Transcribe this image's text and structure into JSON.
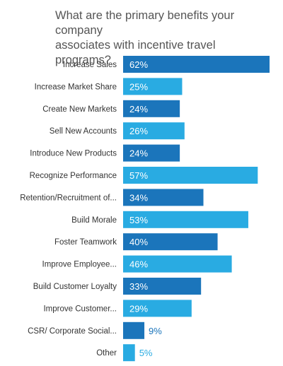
{
  "chart_data": {
    "type": "bar",
    "orientation": "horizontal",
    "title": "What are the primary benefits  your company\nassociates with incentive travel programs?",
    "categories": [
      "Increase Sales",
      "Increase Market Share",
      "Create New Markets",
      "Sell New Accounts",
      "Introduce New Products",
      "Recognize Performance",
      "Retention/Recruitment of...",
      "Build Morale",
      "Foster Teamwork",
      "Improve Employee...",
      "Build Customer Loyalty",
      "Improve Customer...",
      "CSR/ Corporate Social...",
      "Other"
    ],
    "values": [
      62,
      25,
      24,
      26,
      24,
      57,
      34,
      53,
      40,
      46,
      33,
      29,
      9,
      5
    ],
    "value_labels": [
      "62%",
      "25%",
      "24%",
      "26%",
      "24%",
      "57%",
      "34%",
      "53%",
      "40%",
      "46%",
      "33%",
      "29%",
      "9%",
      "5%"
    ],
    "unit": "%",
    "xlim": [
      0,
      62
    ],
    "grid": false,
    "legend": "none",
    "colors": {
      "dark": "#1b75bb",
      "light": "#29abe2"
    }
  }
}
